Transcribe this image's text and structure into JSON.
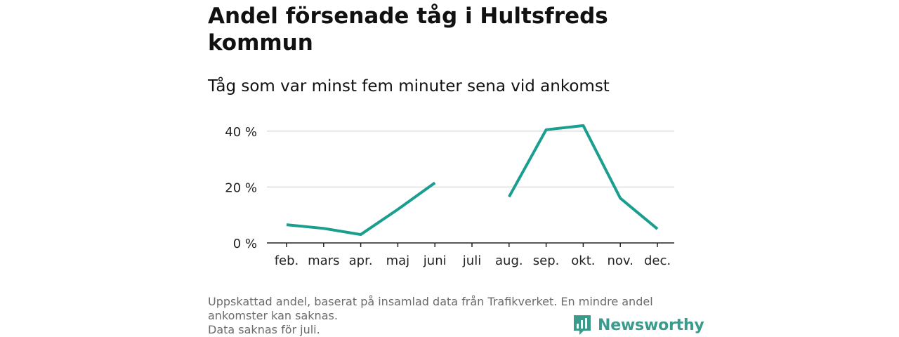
{
  "title": "Andel försenade tåg i Hultsfreds kommun",
  "subtitle": "Tåg som var minst fem minuter sena vid ankomst",
  "footer": {
    "line1": "Uppskattad andel, baserat på insamlad data från Trafikverket. En mindre andel",
    "line2": "ankomster kan saknas.",
    "line3": "Data saknas för juli."
  },
  "logo": {
    "text": "Newsworthy",
    "icon": "newsworthy-bar-chart-icon"
  },
  "colors": {
    "line": "#1a9e8f",
    "grid": "#dddddd",
    "axis": "#222222",
    "logo": "#3a9a8c"
  },
  "chart_data": {
    "type": "line",
    "categories": [
      "feb.",
      "mars",
      "apr.",
      "maj",
      "juni",
      "juli",
      "aug.",
      "sep.",
      "okt.",
      "nov.",
      "dec."
    ],
    "series": [
      {
        "values": [
          6.5,
          5.2,
          3.0,
          12.0,
          21.5,
          null,
          16.5,
          40.5,
          42.0,
          16.0,
          5.0
        ]
      }
    ],
    "ylim": [
      0,
      45
    ],
    "yticks": [
      0,
      20,
      40
    ],
    "ytick_labels": [
      "0 %",
      "20 %",
      "40 %"
    ],
    "grid": true,
    "legend": "none"
  }
}
